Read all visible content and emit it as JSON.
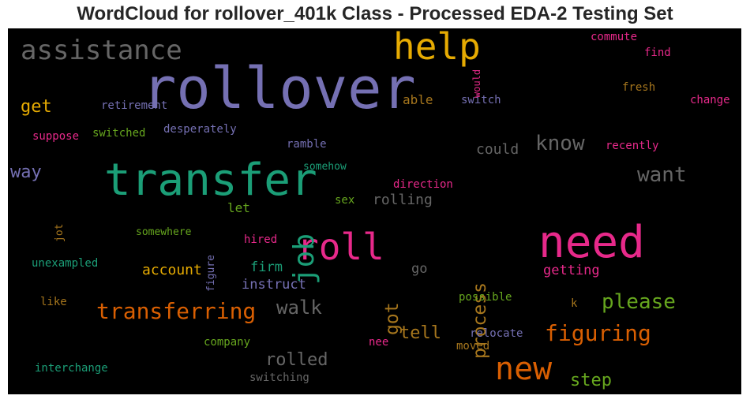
{
  "chart_data": {
    "type": "wordcloud",
    "title": "WordCloud for rollover_401k Class - Processed EDA-2 Testing Set",
    "background": "#000000",
    "words": [
      {
        "text": "rollover",
        "color": "#7570b3",
        "weight": 100
      },
      {
        "text": "transfer",
        "color": "#1b9e77",
        "weight": 88
      },
      {
        "text": "need",
        "color": "#e7298a",
        "weight": 80
      },
      {
        "text": "roll",
        "color": "#e7298a",
        "weight": 70
      },
      {
        "text": "help",
        "color": "#e6ab02",
        "weight": 68
      },
      {
        "text": "new",
        "color": "#d95f02",
        "weight": 66
      },
      {
        "text": "job",
        "color": "#1b9e77",
        "weight": 58
      },
      {
        "text": "assistance",
        "color": "#666666",
        "weight": 52
      },
      {
        "text": "transferring",
        "color": "#d95f02",
        "weight": 45
      },
      {
        "text": "figuring",
        "color": "#d95f02",
        "weight": 45
      },
      {
        "text": "know",
        "color": "#666666",
        "weight": 41
      },
      {
        "text": "want",
        "color": "#666666",
        "weight": 41
      },
      {
        "text": "please",
        "color": "#66a61e",
        "weight": 41
      },
      {
        "text": "walk",
        "color": "#666666",
        "weight": 40
      },
      {
        "text": "process",
        "color": "#a6761d",
        "weight": 37
      },
      {
        "text": "got",
        "color": "#a6761d",
        "weight": 34
      },
      {
        "text": "rolled",
        "color": "#666666",
        "weight": 34
      },
      {
        "text": "tell",
        "color": "#a6761d",
        "weight": 33
      },
      {
        "text": "way",
        "color": "#7570b3",
        "weight": 33
      },
      {
        "text": "step",
        "color": "#66a61e",
        "weight": 31
      },
      {
        "text": "get",
        "color": "#e6ab02",
        "weight": 30
      },
      {
        "text": "account",
        "color": "#e6ab02",
        "weight": 26
      },
      {
        "text": "rolling",
        "color": "#666666",
        "weight": 26
      },
      {
        "text": "could",
        "color": "#666666",
        "weight": 26
      },
      {
        "text": "getting",
        "color": "#e7298a",
        "weight": 25
      },
      {
        "text": "instruct",
        "color": "#7570b3",
        "weight": 25
      },
      {
        "text": "firm",
        "color": "#1b9e77",
        "weight": 25
      },
      {
        "text": "let",
        "color": "#66a61e",
        "weight": 24
      },
      {
        "text": "go",
        "color": "#666666",
        "weight": 24
      },
      {
        "text": "able",
        "color": "#a6761d",
        "weight": 22
      },
      {
        "text": "switched",
        "color": "#66a61e",
        "weight": 19
      },
      {
        "text": "desperately",
        "color": "#7570b3",
        "weight": 19
      },
      {
        "text": "retirement",
        "color": "#7570b3",
        "weight": 18
      },
      {
        "text": "switch",
        "color": "#7570b3",
        "weight": 18
      },
      {
        "text": "suppose",
        "color": "#e7298a",
        "weight": 18
      },
      {
        "text": "ramble",
        "color": "#7570b3",
        "weight": 18
      },
      {
        "text": "recently",
        "color": "#e7298a",
        "weight": 18
      },
      {
        "text": "direction",
        "color": "#e7298a",
        "weight": 18
      },
      {
        "text": "somehow",
        "color": "#1b9e77",
        "weight": 17
      },
      {
        "text": "sex",
        "color": "#66a61e",
        "weight": 17
      },
      {
        "text": "somewhere",
        "color": "#66a61e",
        "weight": 17
      },
      {
        "text": "hired",
        "color": "#e7298a",
        "weight": 17
      },
      {
        "text": "figure",
        "color": "#7570b3",
        "weight": 17
      },
      {
        "text": "unexampled",
        "color": "#1b9e77",
        "weight": 17
      },
      {
        "text": "like",
        "color": "#a6761d",
        "weight": 17
      },
      {
        "text": "possible",
        "color": "#66a61e",
        "weight": 17
      },
      {
        "text": "company",
        "color": "#66a61e",
        "weight": 17
      },
      {
        "text": "relocate",
        "color": "#7570b3",
        "weight": 17
      },
      {
        "text": "nee",
        "color": "#e7298a",
        "weight": 17
      },
      {
        "text": "moved",
        "color": "#a6761d",
        "weight": 17
      },
      {
        "text": "interchange",
        "color": "#1b9e77",
        "weight": 17
      },
      {
        "text": "switching",
        "color": "#666666",
        "weight": 17
      },
      {
        "text": "commute",
        "color": "#e7298a",
        "weight": 17
      },
      {
        "text": "find",
        "color": "#e7298a",
        "weight": 17
      },
      {
        "text": "fresh",
        "color": "#a6761d",
        "weight": 17
      },
      {
        "text": "change",
        "color": "#e7298a",
        "weight": 17
      },
      {
        "text": "would",
        "color": "#e7298a",
        "weight": 15
      },
      {
        "text": "jot",
        "color": "#a6761d",
        "weight": 15
      },
      {
        "text": "k",
        "color": "#a6761d",
        "weight": 15
      }
    ]
  }
}
